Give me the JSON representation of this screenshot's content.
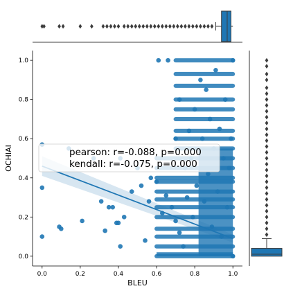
{
  "chart_data": {
    "type": "scatter",
    "title": "",
    "xlabel": "BLEU",
    "ylabel": "OCHIAI",
    "xlim": [
      -0.05,
      1.05
    ],
    "ylim": [
      -0.05,
      1.05
    ],
    "xticks": [
      "0.0",
      "0.2",
      "0.4",
      "0.6",
      "0.8",
      "1.0"
    ],
    "yticks": [
      "0.0",
      "0.2",
      "0.4",
      "0.6",
      "0.8",
      "1.0"
    ],
    "grid": false,
    "color": "#1f77b4",
    "annotation": [
      "pearson: r=-0.088, p=0.000",
      "kendall: r=-0.075, p=0.000"
    ],
    "regression": {
      "x0": 0.0,
      "y0": 0.46,
      "x1": 1.0,
      "y1": 0.09
    },
    "points": [
      [
        0.0,
        0.57
      ],
      [
        0.0,
        0.35
      ],
      [
        0.0,
        0.1
      ],
      [
        0.09,
        0.15
      ],
      [
        0.1,
        0.14
      ],
      [
        0.14,
        0.55
      ],
      [
        0.21,
        0.18
      ],
      [
        0.27,
        0.5
      ],
      [
        0.31,
        0.28
      ],
      [
        0.33,
        0.13
      ],
      [
        0.35,
        0.25
      ],
      [
        0.37,
        0.25
      ],
      [
        0.39,
        0.17
      ],
      [
        0.4,
        0.17
      ],
      [
        0.41,
        0.05
      ],
      [
        0.41,
        0.5
      ],
      [
        0.43,
        0.2
      ],
      [
        0.47,
        0.33
      ],
      [
        0.5,
        0.45
      ],
      [
        0.52,
        0.36
      ],
      [
        0.54,
        0.08
      ],
      [
        0.56,
        0.28
      ],
      [
        0.57,
        0.4
      ],
      [
        0.6,
        0.38
      ],
      [
        0.61,
        1.0
      ],
      [
        0.63,
        0.22
      ],
      [
        0.65,
        0.31
      ],
      [
        0.66,
        1.0
      ],
      [
        0.68,
        0.25
      ],
      [
        0.7,
        0.6
      ],
      [
        0.7,
        0.18
      ],
      [
        0.72,
        0.8
      ],
      [
        0.72,
        0.12
      ],
      [
        0.74,
        0.05
      ],
      [
        0.75,
        0.45
      ],
      [
        0.76,
        0.3
      ],
      [
        0.77,
        0.64
      ],
      [
        0.78,
        0.5
      ],
      [
        0.79,
        0.2
      ],
      [
        0.8,
        0.75
      ],
      [
        0.81,
        0.36
      ],
      [
        0.83,
        0.9
      ],
      [
        0.84,
        0.6
      ],
      [
        0.85,
        0.28
      ],
      [
        0.86,
        0.85
      ],
      [
        0.87,
        0.42
      ],
      [
        0.88,
        0.7
      ],
      [
        0.89,
        0.15
      ],
      [
        0.9,
        0.55
      ],
      [
        0.91,
        0.95
      ],
      [
        0.92,
        0.33
      ],
      [
        0.93,
        0.65
      ],
      [
        0.94,
        0.1
      ],
      [
        0.95,
        0.5
      ],
      [
        0.96,
        0.8
      ],
      [
        0.97,
        0.25
      ],
      [
        0.98,
        0.45
      ],
      [
        0.99,
        0.6
      ],
      [
        1.0,
        1.0
      ],
      [
        1.0,
        0.0
      ]
    ],
    "bands_y": [
      0.0,
      0.05,
      0.1,
      0.14,
      0.2,
      0.25,
      0.29,
      0.33,
      0.38,
      0.4,
      0.45,
      0.5,
      0.55,
      0.6,
      0.64,
      0.7,
      0.75,
      0.8,
      0.87,
      0.93,
      1.0
    ],
    "marginal_x": {
      "type": "box",
      "q1": 0.94,
      "median": 0.97,
      "q3": 0.99,
      "whisker_low": 0.91,
      "whisker_high": 1.0,
      "outliers": [
        0.0,
        0.01,
        0.09,
        0.11,
        0.2,
        0.26,
        0.32,
        0.34,
        0.36,
        0.38,
        0.4,
        0.43,
        0.45,
        0.47,
        0.49,
        0.51,
        0.53,
        0.55,
        0.57,
        0.59,
        0.61,
        0.63,
        0.65,
        0.67,
        0.69,
        0.71,
        0.73,
        0.75,
        0.77,
        0.79,
        0.81,
        0.83,
        0.85,
        0.87,
        0.89
      ]
    },
    "marginal_y": {
      "type": "box",
      "q1": 0.0,
      "median": 0.01,
      "q3": 0.04,
      "whisker_low": 0.0,
      "whisker_high": 0.09,
      "outliers": [
        0.11,
        0.14,
        0.17,
        0.2,
        0.23,
        0.26,
        0.29,
        0.32,
        0.35,
        0.38,
        0.41,
        0.44,
        0.47,
        0.5,
        0.53,
        0.56,
        0.59,
        0.62,
        0.65,
        0.68,
        0.71,
        0.74,
        0.77,
        0.8,
        0.83,
        0.86,
        0.9,
        0.93,
        0.97,
        1.0
      ]
    }
  }
}
